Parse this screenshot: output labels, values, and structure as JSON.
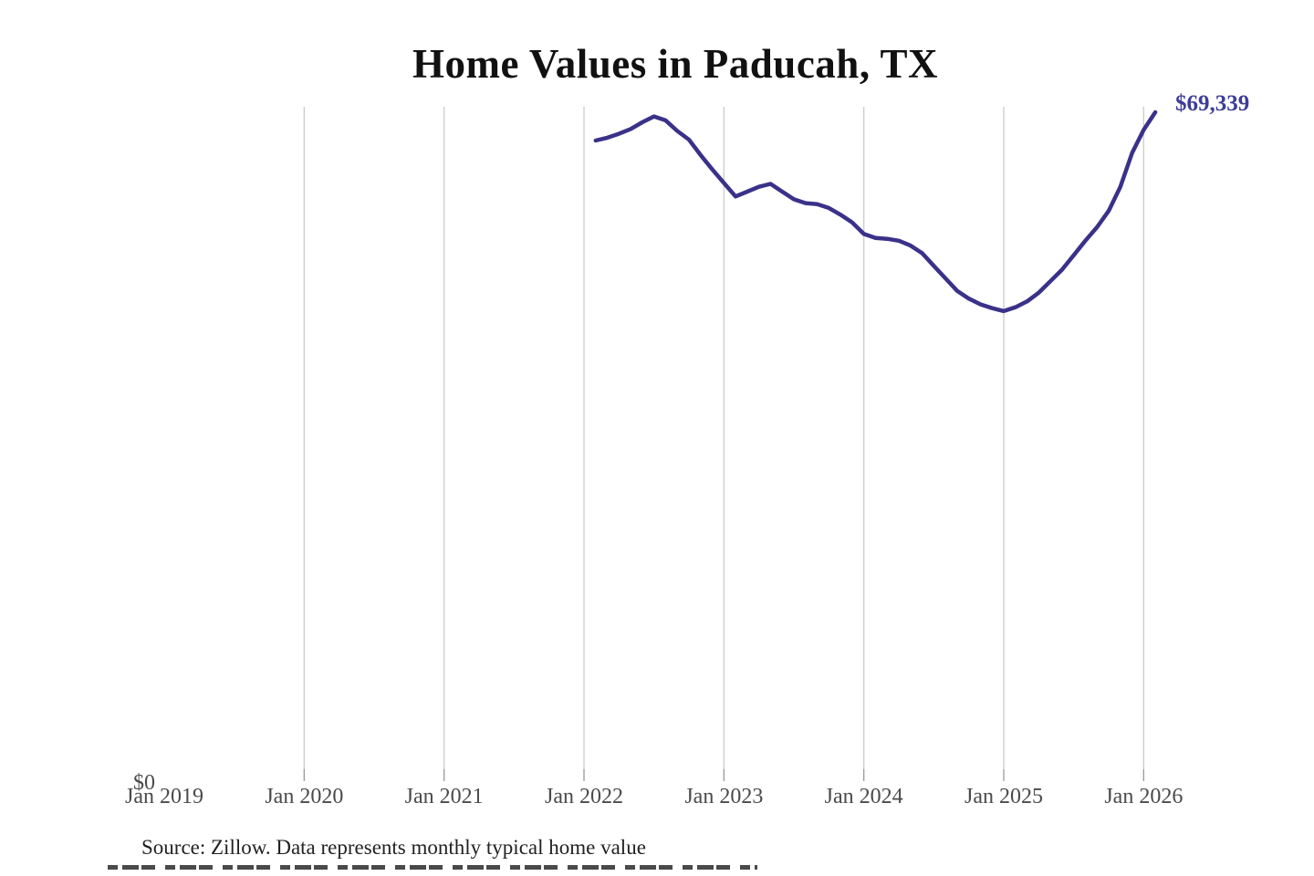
{
  "title": "Home Values in Paducah, TX",
  "source_note": "Source: Zillow. Data represents monthly typical home value",
  "end_value_label": "$69,339",
  "axis": {
    "y_zero_label": "$0",
    "x_labels": [
      "Jan 2019",
      "Jan 2020",
      "Jan 2021",
      "Jan 2022",
      "Jan 2023",
      "Jan 2024",
      "Jan 2025",
      "Jan 2026"
    ]
  },
  "colors": {
    "line": "#3a3189",
    "end_label": "#3d3d99",
    "grid": "#cccccc",
    "tick": "#999999",
    "axis_text": "#4a4a4a",
    "title_text": "#111111",
    "source_text": "#222222",
    "background": "#ffffff"
  },
  "chart_data": {
    "type": "line",
    "title": "Home Values in Paducah, TX",
    "xlabel": "",
    "ylabel": "",
    "unit": "USD",
    "ylim": [
      0,
      69800
    ],
    "grid": "vertical-only",
    "legend": "none",
    "end_annotation": "$69,339",
    "x_tick_labels": [
      "Jan 2019",
      "Jan 2020",
      "Jan 2021",
      "Jan 2022",
      "Jan 2023",
      "Jan 2024",
      "Jan 2025",
      "Jan 2026"
    ],
    "x": [
      "Feb 2022",
      "Mar 2022",
      "Apr 2022",
      "May 2022",
      "Jun 2022",
      "Jul 2022",
      "Aug 2022",
      "Sep 2022",
      "Oct 2022",
      "Nov 2022",
      "Dec 2022",
      "Jan 2023",
      "Feb 2023",
      "Mar 2023",
      "Apr 2023",
      "May 2023",
      "Jun 2023",
      "Jul 2023",
      "Aug 2023",
      "Sep 2023",
      "Oct 2023",
      "Nov 2023",
      "Dec 2023",
      "Jan 2024",
      "Feb 2024",
      "Mar 2024",
      "Apr 2024",
      "May 2024",
      "Jun 2024",
      "Jul 2024",
      "Aug 2024",
      "Sep 2024",
      "Oct 2024",
      "Nov 2024",
      "Dec 2024",
      "Jan 2025",
      "Feb 2025",
      "Mar 2025",
      "Apr 2025",
      "May 2025",
      "Jun 2025",
      "Jul 2025",
      "Aug 2025",
      "Sep 2025",
      "Oct 2025",
      "Nov 2025",
      "Dec 2025",
      "Jan 2026",
      "Feb 2026"
    ],
    "series": [
      {
        "name": "Monthly typical home value",
        "values": [
          66400,
          66700,
          67100,
          67600,
          68300,
          68900,
          68500,
          67400,
          66500,
          64900,
          63400,
          62000,
          60600,
          61100,
          61600,
          61900,
          61100,
          60300,
          59900,
          59800,
          59400,
          58700,
          57900,
          56700,
          56300,
          56200,
          56000,
          55500,
          54700,
          53400,
          52100,
          50800,
          50000,
          49400,
          49000,
          48700,
          49100,
          49700,
          50600,
          51800,
          53000,
          54500,
          56000,
          57400,
          59100,
          61600,
          65100,
          67500,
          69339
        ]
      }
    ]
  }
}
